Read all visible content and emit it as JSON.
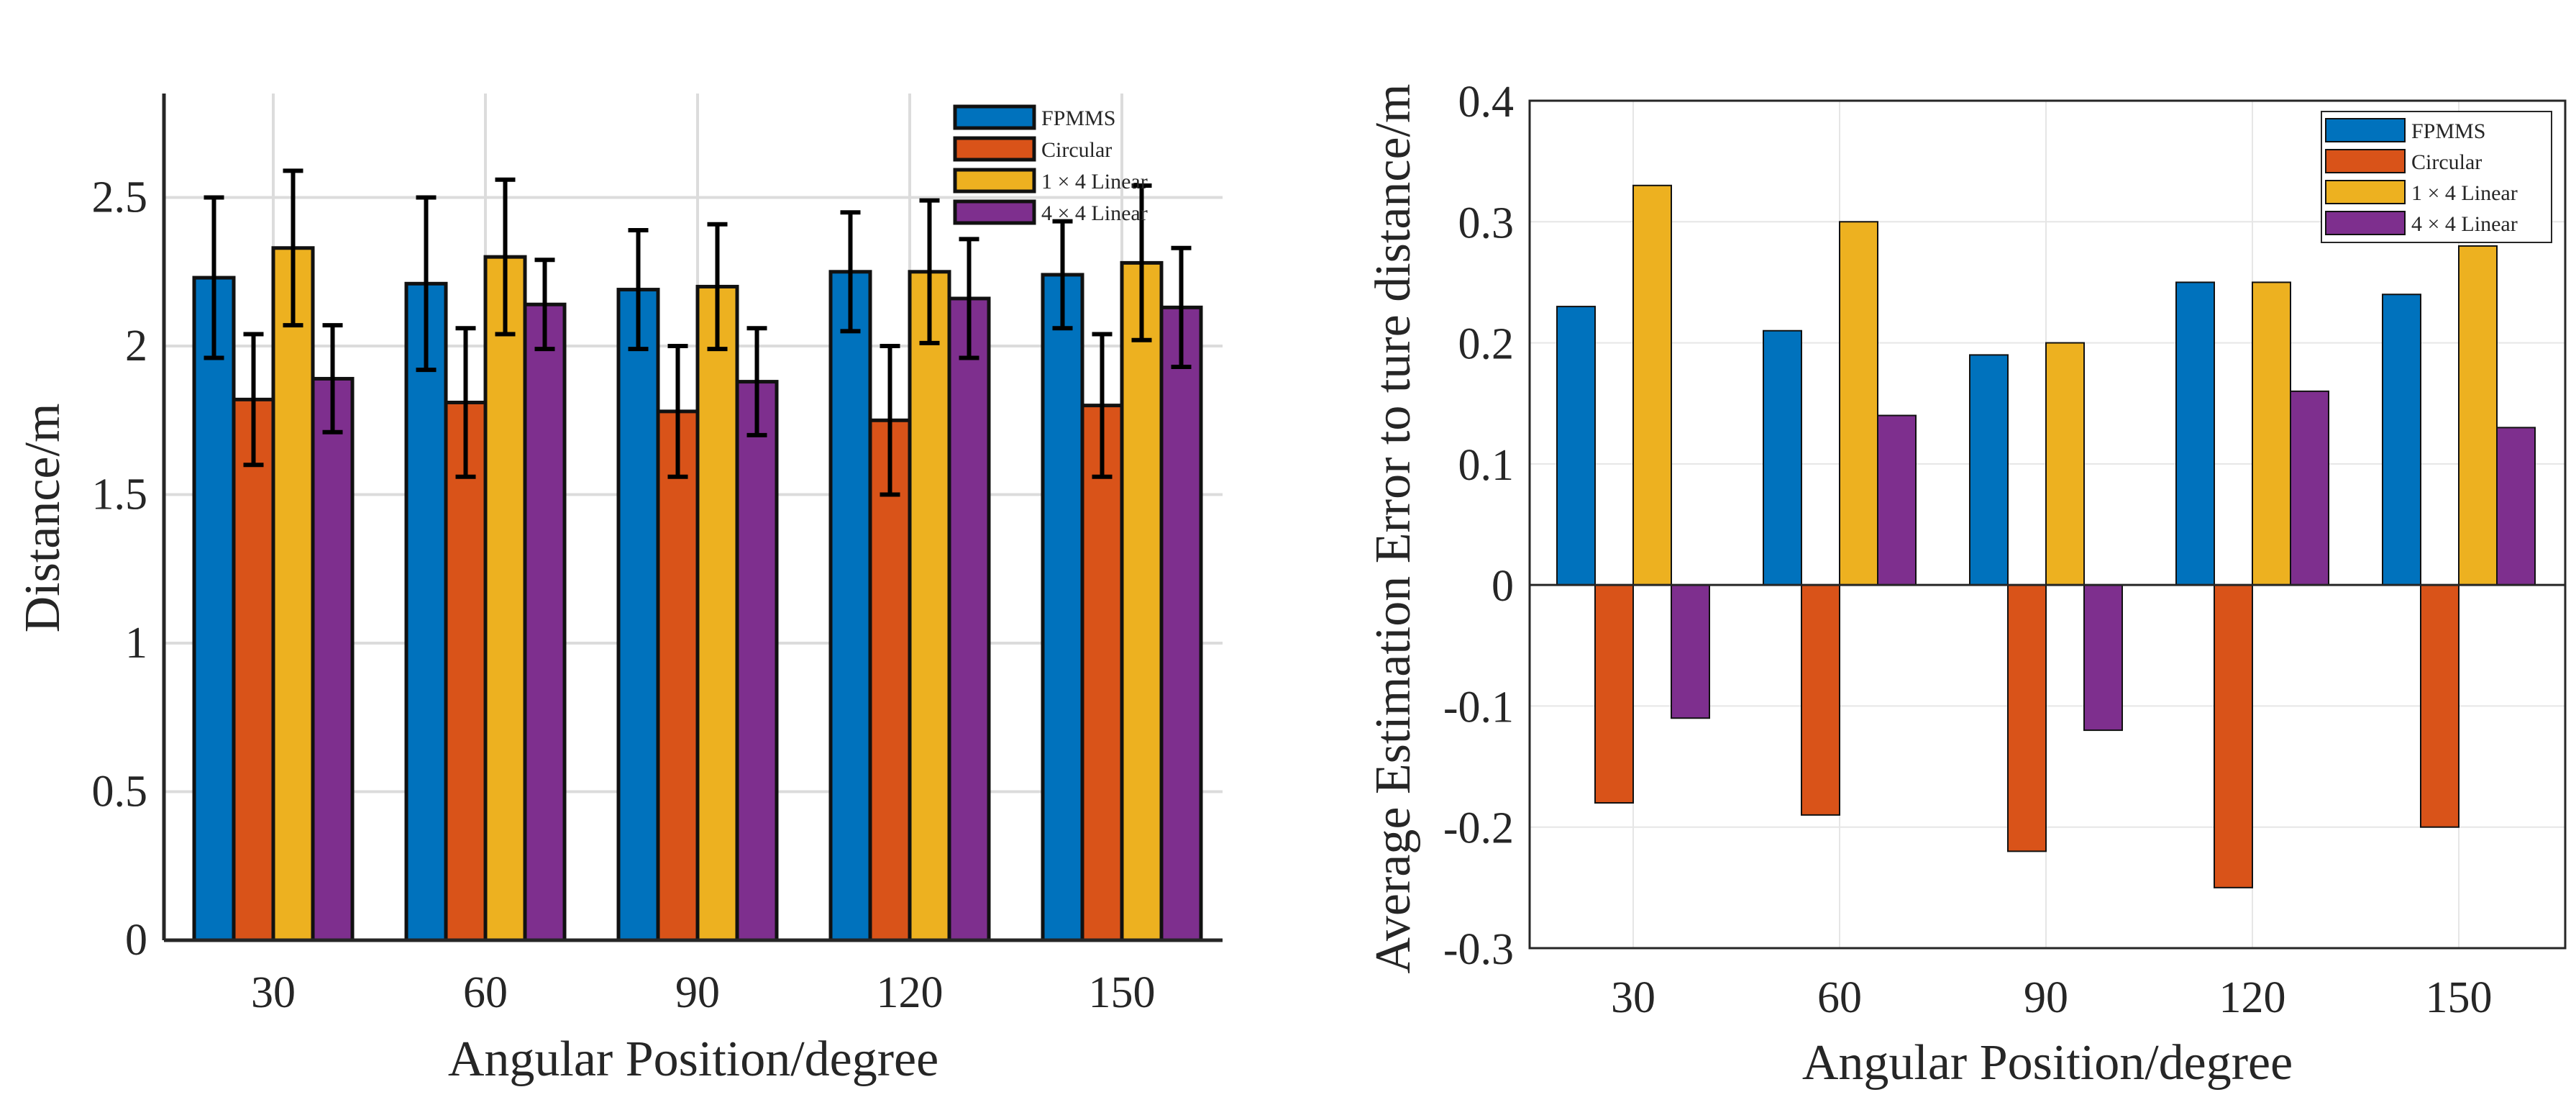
{
  "chart_data": [
    {
      "type": "bar",
      "categories": [
        "30",
        "60",
        "90",
        "120",
        "150"
      ],
      "series": [
        {
          "name": "FPMMS",
          "color": "#0072BD",
          "values": [
            2.23,
            2.21,
            2.19,
            2.25,
            2.24
          ],
          "err": [
            0.27,
            0.29,
            0.2,
            0.2,
            0.18
          ]
        },
        {
          "name": "Circular",
          "color": "#D95319",
          "values": [
            1.82,
            1.81,
            1.78,
            1.75,
            1.8
          ],
          "err": [
            0.22,
            0.25,
            0.22,
            0.25,
            0.24
          ]
        },
        {
          "name": "1 × 4 Linear",
          "color": "#EDB120",
          "values": [
            2.33,
            2.3,
            2.2,
            2.25,
            2.28
          ],
          "err": [
            0.26,
            0.26,
            0.21,
            0.24,
            0.26
          ]
        },
        {
          "name": "4 × 4 Linear",
          "color": "#7E2F8E",
          "values": [
            1.89,
            2.14,
            1.88,
            2.16,
            2.13
          ],
          "err": [
            0.18,
            0.15,
            0.18,
            0.2,
            0.2
          ]
        }
      ],
      "xlabel": "Angular Position/degree",
      "ylabel": "Distance/m",
      "ylim": [
        0,
        2.85
      ],
      "yticks": [
        "0",
        "0.5",
        "1",
        "1.5",
        "2",
        "2.5"
      ],
      "ytick_values": [
        0,
        0.5,
        1,
        1.5,
        2,
        2.5
      ],
      "grid": true,
      "legend": "top-right"
    },
    {
      "type": "bar",
      "categories": [
        "30",
        "60",
        "90",
        "120",
        "150"
      ],
      "series": [
        {
          "name": "FPMMS",
          "color": "#0072BD",
          "values": [
            0.23,
            0.21,
            0.19,
            0.25,
            0.24
          ]
        },
        {
          "name": "Circular",
          "color": "#D95319",
          "values": [
            -0.18,
            -0.19,
            -0.22,
            -0.25,
            -0.2
          ]
        },
        {
          "name": "1 × 4 Linear",
          "color": "#EDB120",
          "values": [
            0.33,
            0.3,
            0.2,
            0.25,
            0.28
          ]
        },
        {
          "name": "4 × 4 Linear",
          "color": "#7E2F8E",
          "values": [
            -0.11,
            0.14,
            -0.12,
            0.16,
            0.13
          ]
        }
      ],
      "xlabel": "Angular Position/degree",
      "ylabel": "Average Estimation Error to ture distance/m",
      "ylim": [
        -0.3,
        0.4
      ],
      "yticks": [
        "-0.3",
        "-0.2",
        "-0.1",
        "0",
        "0.1",
        "0.2",
        "0.3",
        "0.4"
      ],
      "ytick_values": [
        -0.3,
        -0.2,
        -0.1,
        0,
        0.1,
        0.2,
        0.3,
        0.4
      ],
      "grid": true,
      "legend": "top-right"
    }
  ]
}
